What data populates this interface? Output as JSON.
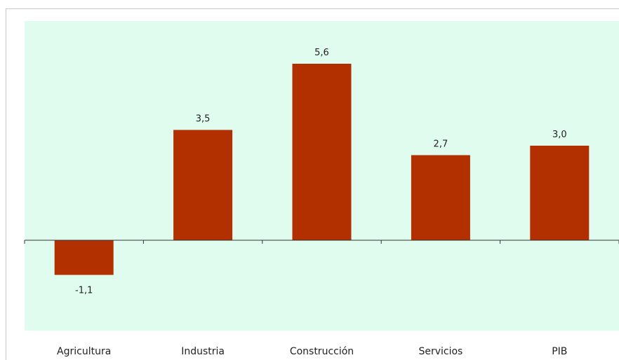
{
  "chart_data": {
    "type": "bar",
    "categories": [
      "Agricultura",
      "Industria",
      "Construcción",
      "Servicios",
      "PIB"
    ],
    "values": [
      -1.1,
      3.5,
      5.6,
      2.7,
      3.0
    ],
    "data_labels": [
      "-1,1",
      "3,5",
      "5,6",
      "2,7",
      "3,0"
    ],
    "title": "",
    "xlabel": "",
    "ylabel": "",
    "grid": false,
    "legend": "none",
    "colors": {
      "bar": "#b23000",
      "plot_background": "#dffcef",
      "axis": "#333333"
    }
  }
}
